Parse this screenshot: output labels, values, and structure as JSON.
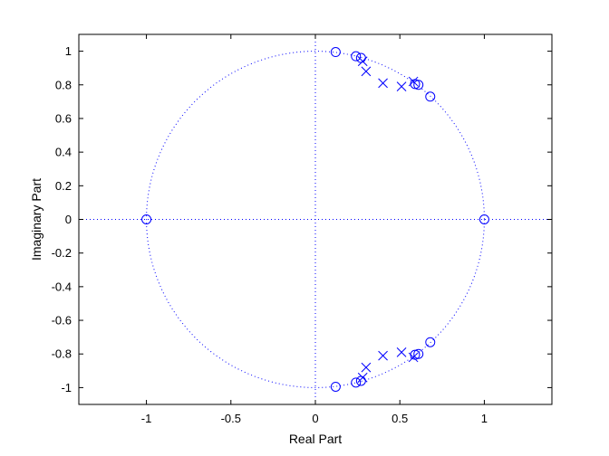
{
  "chart_data": {
    "type": "scatter",
    "title": "",
    "xlabel": "Real Part",
    "ylabel": "Imaginary Part",
    "xlim": [
      -1.4,
      1.4
    ],
    "ylim": [
      -1.1,
      1.1
    ],
    "xticks": [
      -1,
      -0.5,
      0,
      0.5,
      1
    ],
    "xtick_labels": [
      "-1",
      "-0.5",
      "0",
      "0.5",
      "1"
    ],
    "yticks": [
      -1,
      -0.8,
      -0.6,
      -0.4,
      -0.2,
      0,
      0.2,
      0.4,
      0.6,
      0.8,
      1
    ],
    "ytick_labels": [
      "-1",
      "-0.8",
      "-0.6",
      "-0.4",
      "-0.2",
      "0",
      "0.2",
      "0.4",
      "0.6",
      "0.8",
      "1"
    ],
    "grid": false,
    "unit_circle": true,
    "color": "#0000ff",
    "series": [
      {
        "marker": "o",
        "points": [
          [
            0.12,
            0.995
          ],
          [
            0.24,
            0.97
          ],
          [
            0.27,
            0.96
          ],
          [
            0.59,
            0.805
          ],
          [
            0.61,
            0.8
          ],
          [
            0.68,
            0.73
          ],
          [
            1.0,
            0.0
          ],
          [
            -1.0,
            0.0
          ],
          [
            0.12,
            -0.995
          ],
          [
            0.24,
            -0.97
          ],
          [
            0.27,
            -0.96
          ],
          [
            0.59,
            -0.805
          ],
          [
            0.61,
            -0.8
          ],
          [
            0.68,
            -0.73
          ]
        ]
      },
      {
        "marker": "x",
        "points": [
          [
            0.28,
            0.94
          ],
          [
            0.3,
            0.88
          ],
          [
            0.4,
            0.81
          ],
          [
            0.51,
            0.79
          ],
          [
            0.58,
            0.82
          ],
          [
            0.28,
            -0.94
          ],
          [
            0.3,
            -0.88
          ],
          [
            0.4,
            -0.81
          ],
          [
            0.51,
            -0.79
          ],
          [
            0.58,
            -0.82
          ]
        ]
      }
    ]
  }
}
